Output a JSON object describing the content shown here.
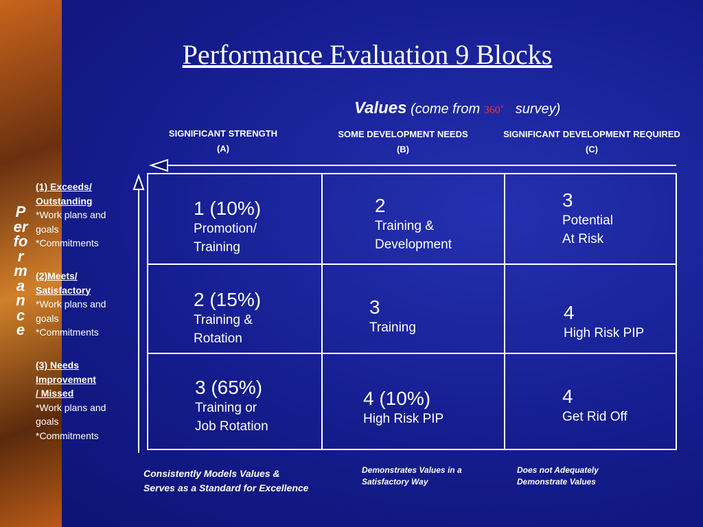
{
  "title": "Performance Evaluation 9 Blocks",
  "values_header": {
    "label": "Values",
    "prefix": "(come from",
    "degree": "360˚",
    "suffix": "survey)"
  },
  "columns": [
    {
      "label": "SIGNIFICANT STRENGTH",
      "code": "(A)",
      "footer": [
        "Consistently Models Values &",
        "Serves as a Standard for Excellence"
      ]
    },
    {
      "label": "SOME DEVELOPMENT NEEDS",
      "code": "(B)",
      "footer": [
        "Demonstrates Values in a",
        "Satisfactory Way"
      ]
    },
    {
      "label": "SIGNIFICANT DEVELOPMENT REQUIRED",
      "code": "(C)",
      "footer": [
        "Does not Adequately",
        "Demonstrate Values"
      ]
    }
  ],
  "axis_label": "Performance",
  "rows": [
    {
      "heading": [
        "(1) Exceeds/",
        "Outstanding"
      ],
      "items": [
        "*Work plans and goals",
        "*Commitments"
      ]
    },
    {
      "heading": [
        "(2)Meets/",
        "Satisfactory"
      ],
      "items": [
        "*Work plans and goals",
        "*Commitments"
      ]
    },
    {
      "heading": [
        "(3)  Needs",
        "Improvement",
        "/ Missed"
      ],
      "items": [
        "*Work plans and goals",
        "*Commitments"
      ]
    }
  ],
  "cells": [
    [
      [
        "1 (10%)",
        "Promotion/",
        "Training"
      ],
      [
        "2",
        "Training &",
        "Development"
      ],
      [
        "3",
        "Potential",
        "At Risk"
      ]
    ],
    [
      [
        "2 (15%)",
        "Training &",
        "Rotation"
      ],
      [
        "3",
        "Training"
      ],
      [
        "4",
        "High Risk PIP"
      ]
    ],
    [
      [
        "3 (65%)",
        "Training or",
        "Job Rotation"
      ],
      [
        "4 (10%)",
        "High Risk PIP"
      ],
      [
        "4",
        "Get Rid Off"
      ]
    ]
  ]
}
